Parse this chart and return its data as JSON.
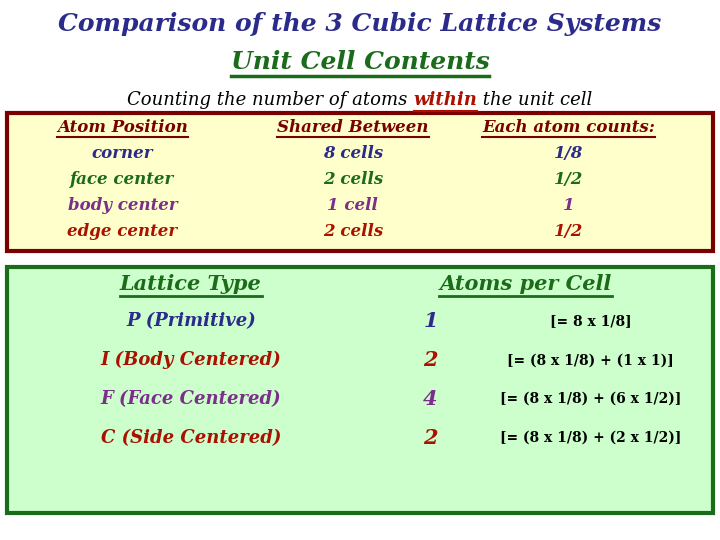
{
  "title_line1": "Comparison of the 3 Cubic Lattice Systems",
  "title_line1_color": "#2b2b8b",
  "title_line2": "Unit Cell Contents",
  "title_line2_color": "#1a6b1a",
  "subtitle_pre": "Counting the number of atoms ",
  "subtitle_within": "within",
  "subtitle_post": " the unit cell",
  "subtitle_color": "#000000",
  "subtitle_within_color": "#aa1100",
  "top_box_bg": "#ffffcc",
  "top_box_border": "#7a0000",
  "bottom_box_bg": "#ccffcc",
  "bottom_box_border": "#1a6b1a",
  "header_color": "#7a0000",
  "col1_header": "Atom Position",
  "col2_header": "Shared Between",
  "col3_header": "Each atom counts:",
  "rows": [
    {
      "pos": "corner",
      "shared": "8 cells",
      "count": "1/8",
      "color": "#2b2b8b"
    },
    {
      "pos": "face center",
      "shared": "2 cells",
      "count": "1/2",
      "color": "#1a6b1a"
    },
    {
      "pos": "body center",
      "shared": "1 cell",
      "count": "1",
      "color": "#7b2f8b"
    },
    {
      "pos": "edge center",
      "shared": "2 cells",
      "count": "1/2",
      "color": "#aa1100"
    }
  ],
  "lattice_header": "Lattice Type",
  "atoms_header": "Atoms per Cell",
  "lattice_header_color": "#1a6b1a",
  "atoms_header_color": "#1a6b1a",
  "lattice_rows": [
    {
      "name": "P (Primitive)",
      "name_color": "#2b2b8b",
      "num": "1",
      "num_color": "#2b2b8b",
      "formula": "[= 8 x 1/8]",
      "formula_color": "#000000"
    },
    {
      "name": "I (Body Centered)",
      "name_color": "#aa1100",
      "num": "2",
      "num_color": "#aa1100",
      "formula": "[= (8 x 1/8) + (1 x 1)]",
      "formula_color": "#000000"
    },
    {
      "name": "F (Face Centered)",
      "name_color": "#7b2f8b",
      "num": "4",
      "num_color": "#7b2f8b",
      "formula": "[= (8 x 1/8) + (6 x 1/2)]",
      "formula_color": "#000000"
    },
    {
      "name": "C (Side Centered)",
      "name_color": "#aa1100",
      "num": "2",
      "num_color": "#aa1100",
      "formula": "[= (8 x 1/8) + (2 x 1/2)]",
      "formula_color": "#000000"
    }
  ],
  "bg_color": "#ffffff"
}
